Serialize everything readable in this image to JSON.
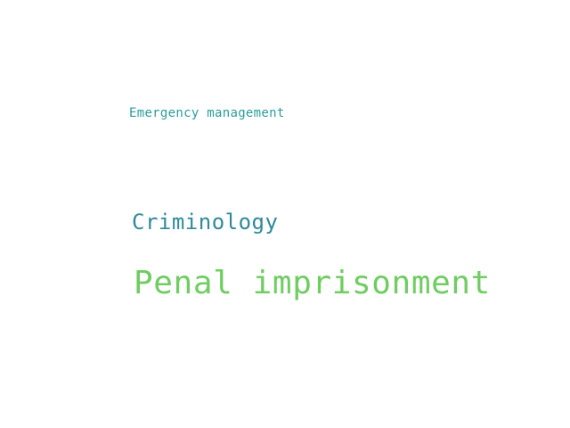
{
  "words": [
    {
      "text": "Emergency management",
      "color": "#2a9d9a"
    },
    {
      "text": "Criminology",
      "color": "#2f8a9a"
    },
    {
      "text": "Penal imprisonment",
      "color": "#6fcd62"
    }
  ]
}
